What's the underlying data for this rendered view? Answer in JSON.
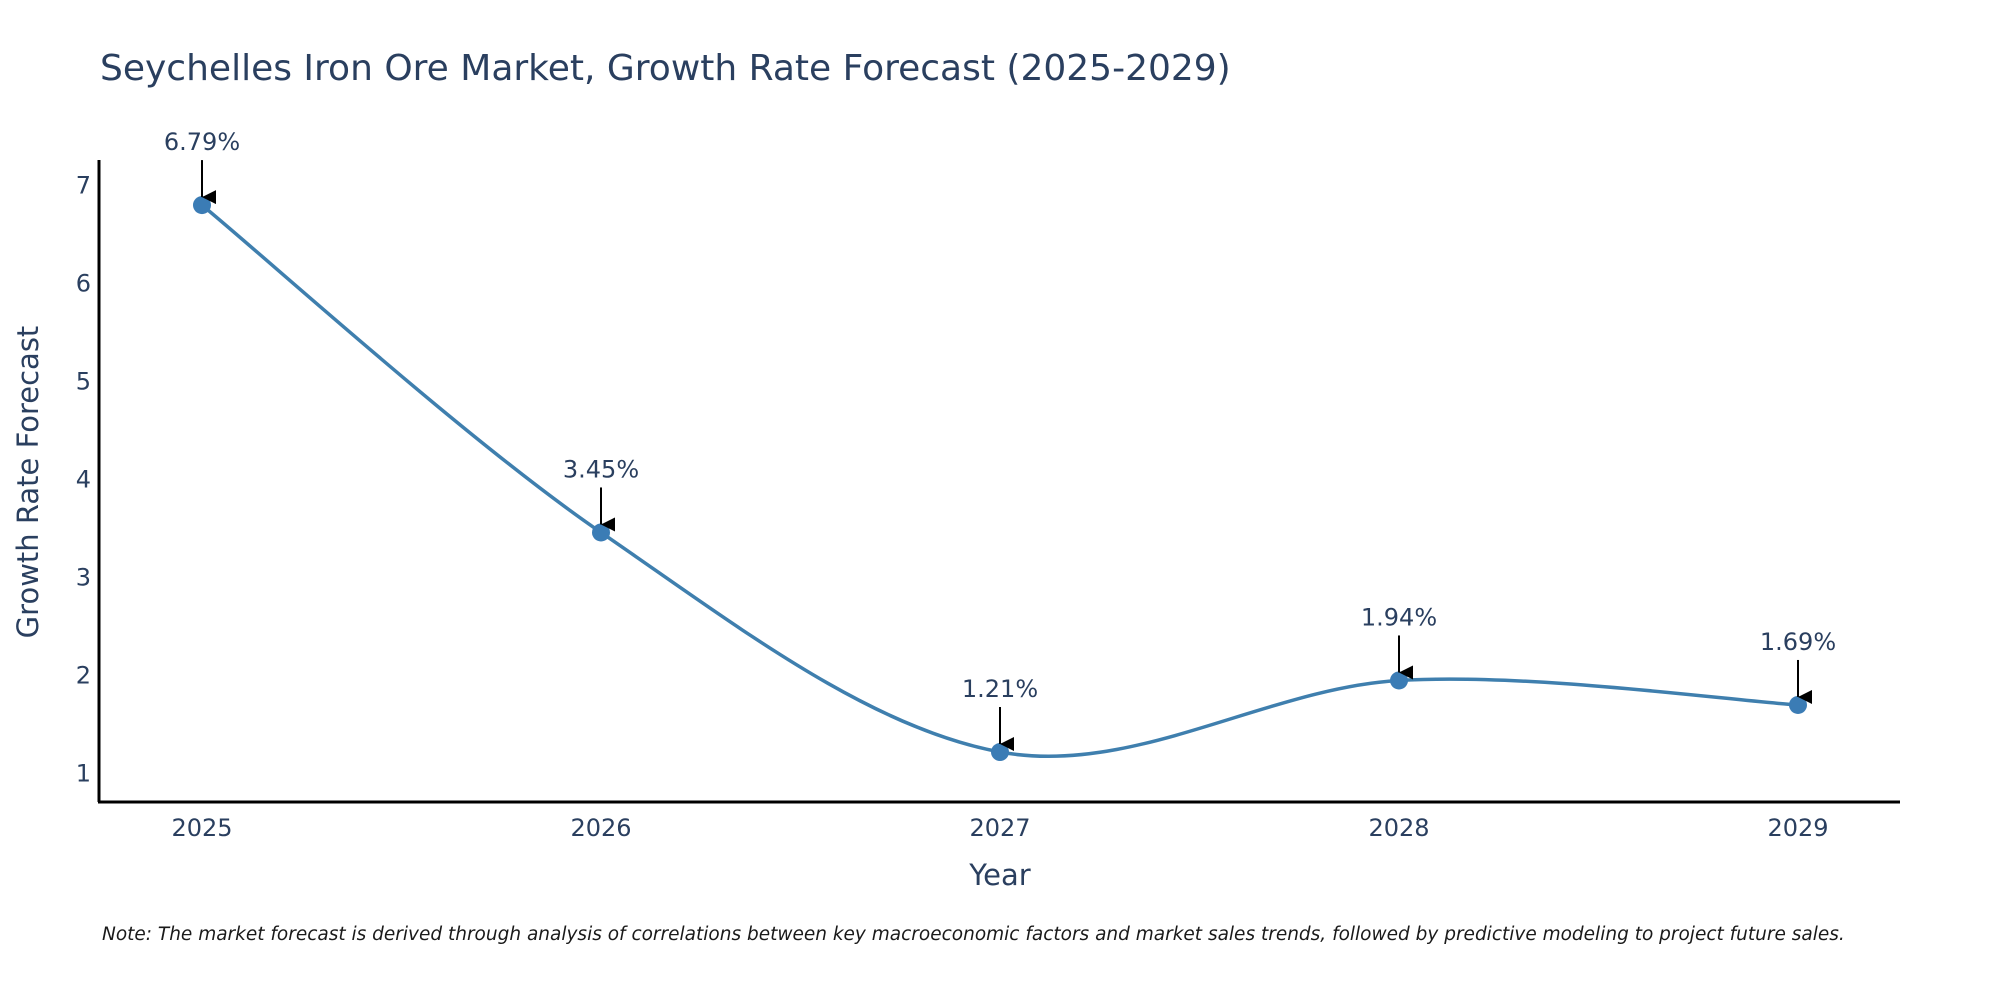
{
  "chart_data": {
    "type": "line",
    "title": "Seychelles Iron Ore Market, Growth Rate Forecast (2025-2029)",
    "xlabel": "Year",
    "ylabel": "Growth Rate Forecast",
    "x": [
      "2025",
      "2026",
      "2027",
      "2028",
      "2029"
    ],
    "series": [
      {
        "name": "Growth Rate Forecast",
        "values": [
          6.79,
          3.45,
          1.21,
          1.94,
          1.69
        ],
        "labels": [
          "6.79%",
          "3.45%",
          "1.21%",
          "1.94%",
          "1.69%"
        ]
      }
    ],
    "yticks": [
      1,
      2,
      3,
      4,
      5,
      6,
      7
    ],
    "ylim": [
      0.7,
      7.25
    ],
    "grid": false,
    "line_shape": "spline",
    "colors": {
      "line": "#3f7fae",
      "marker": "#3b7cb5",
      "axis": "#000000",
      "text": "#2a3f5f",
      "arrow": "#000000"
    },
    "note": "Note: The market forecast is derived through analysis of correlations between key macroeconomic factors and market sales trends, followed by predictive modeling to project future sales."
  }
}
